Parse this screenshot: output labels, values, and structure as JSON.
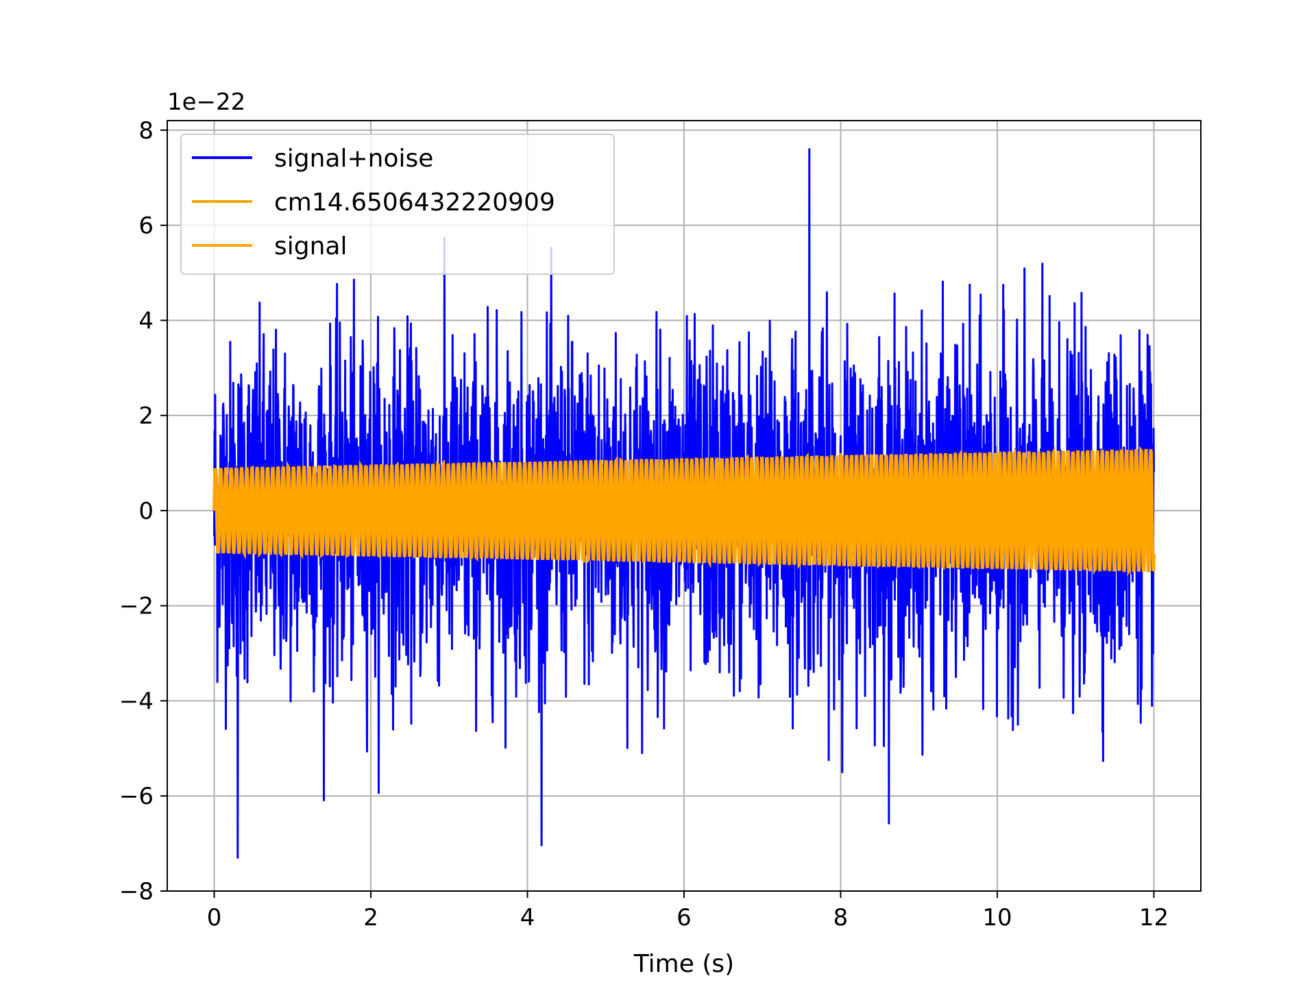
{
  "chart_data": {
    "type": "line",
    "title": "",
    "xlabel": "Time (s)",
    "ylabel": "",
    "offset_text": "1e−22",
    "y_scale_factor": 1e-22,
    "xlim": [
      -0.6,
      12.6
    ],
    "ylim": [
      -8,
      8.2
    ],
    "x_ticks": [
      0,
      2,
      4,
      6,
      8,
      10,
      12
    ],
    "x_tick_labels": [
      "0",
      "2",
      "4",
      "6",
      "8",
      "10",
      "12"
    ],
    "y_ticks": [
      -8,
      -6,
      -4,
      -2,
      0,
      2,
      4,
      6,
      8
    ],
    "y_tick_labels": [
      "−8",
      "−6",
      "−4",
      "−2",
      "0",
      "2",
      "4",
      "6",
      "8"
    ],
    "grid": true,
    "legend_position": "upper left",
    "series": [
      {
        "name": "signal+noise",
        "color": "#0000ff",
        "x_range": [
          0,
          12
        ],
        "approx_envelope": [
          -7.3,
          7.6
        ],
        "description_values": {
          "peak_max": 7.6,
          "peak_max_t": 7.6,
          "peak_min": -7.3,
          "peak_min_t": 0.3
        }
      },
      {
        "name": "cm14.6506432220909",
        "color": "#ffa500",
        "x_range": [
          0,
          12
        ],
        "amplitude_start": 0.9,
        "amplitude_end": 1.3
      },
      {
        "name": "signal",
        "color": "#ffa500",
        "x_range": [
          0,
          12
        ],
        "amplitude_start": 0.9,
        "amplitude_end": 1.3
      }
    ]
  }
}
